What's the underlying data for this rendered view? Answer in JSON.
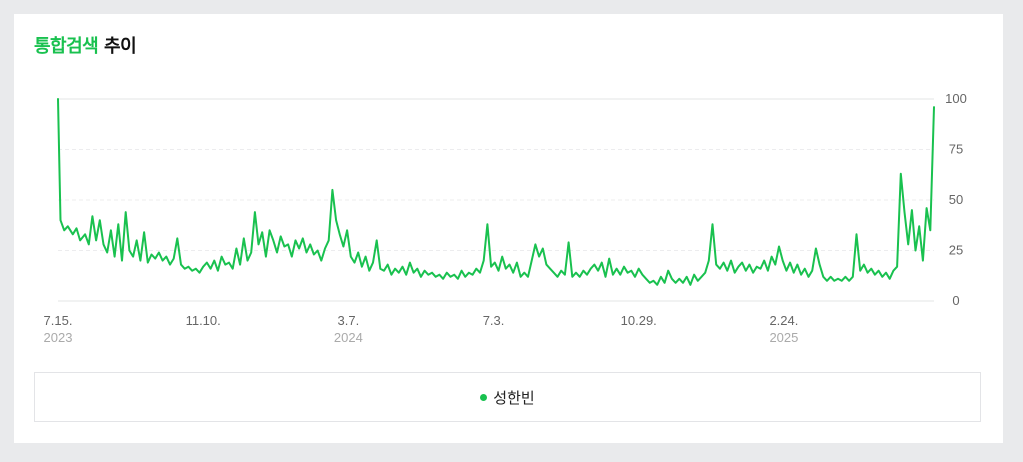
{
  "title": {
    "accent": "통합검색",
    "rest": "추이"
  },
  "legend": {
    "items": [
      {
        "label": "성한빈",
        "color": "#19c14f"
      }
    ]
  },
  "chart_data": {
    "type": "line",
    "x_labels": [
      {
        "date": "7.15.",
        "year": "2023",
        "index": 0
      },
      {
        "date": "11.10.",
        "year": "",
        "index": 118
      },
      {
        "date": "3.7.",
        "year": "2024",
        "index": 236
      },
      {
        "date": "7.3.",
        "year": "",
        "index": 354
      },
      {
        "date": "10.29.",
        "year": "",
        "index": 472
      },
      {
        "date": "2.24.",
        "year": "2025",
        "index": 590
      }
    ],
    "y_ticks": [
      0,
      25,
      50,
      75,
      100
    ],
    "ylim": [
      0,
      100
    ],
    "grid": true,
    "line_color": "#19c14f",
    "series": [
      {
        "name": "성한빈",
        "x_start": "2023-07-15",
        "x_step": "1 day",
        "anchors": [
          [
            0,
            100
          ],
          [
            2,
            40
          ],
          [
            5,
            35
          ],
          [
            8,
            37
          ],
          [
            12,
            33
          ],
          [
            15,
            36
          ],
          [
            18,
            30
          ],
          [
            22,
            33
          ],
          [
            25,
            28
          ],
          [
            28,
            42
          ],
          [
            31,
            30
          ],
          [
            34,
            40
          ],
          [
            37,
            28
          ],
          [
            40,
            24
          ],
          [
            43,
            35
          ],
          [
            46,
            22
          ],
          [
            49,
            38
          ],
          [
            52,
            20
          ],
          [
            55,
            44
          ],
          [
            58,
            25
          ],
          [
            61,
            22
          ],
          [
            64,
            30
          ],
          [
            67,
            20
          ],
          [
            70,
            34
          ],
          [
            73,
            19
          ],
          [
            76,
            23
          ],
          [
            79,
            21
          ],
          [
            82,
            24
          ],
          [
            85,
            20
          ],
          [
            88,
            22
          ],
          [
            91,
            18
          ],
          [
            94,
            21
          ],
          [
            97,
            31
          ],
          [
            100,
            18
          ],
          [
            103,
            16
          ],
          [
            106,
            17
          ],
          [
            109,
            15
          ],
          [
            112,
            16
          ],
          [
            115,
            14
          ],
          [
            118,
            17
          ],
          [
            121,
            19
          ],
          [
            124,
            16
          ],
          [
            127,
            20
          ],
          [
            130,
            15
          ],
          [
            133,
            22
          ],
          [
            136,
            18
          ],
          [
            139,
            19
          ],
          [
            142,
            16
          ],
          [
            145,
            26
          ],
          [
            148,
            18
          ],
          [
            151,
            31
          ],
          [
            154,
            20
          ],
          [
            157,
            24
          ],
          [
            160,
            44
          ],
          [
            163,
            28
          ],
          [
            166,
            34
          ],
          [
            169,
            22
          ],
          [
            172,
            35
          ],
          [
            175,
            30
          ],
          [
            178,
            24
          ],
          [
            181,
            32
          ],
          [
            184,
            27
          ],
          [
            187,
            28
          ],
          [
            190,
            22
          ],
          [
            193,
            30
          ],
          [
            196,
            26
          ],
          [
            199,
            31
          ],
          [
            202,
            24
          ],
          [
            205,
            28
          ],
          [
            208,
            23
          ],
          [
            211,
            25
          ],
          [
            214,
            20
          ],
          [
            217,
            26
          ],
          [
            220,
            30
          ],
          [
            223,
            55
          ],
          [
            226,
            40
          ],
          [
            229,
            33
          ],
          [
            232,
            27
          ],
          [
            235,
            35
          ],
          [
            238,
            22
          ],
          [
            241,
            19
          ],
          [
            244,
            24
          ],
          [
            247,
            17
          ],
          [
            250,
            22
          ],
          [
            253,
            15
          ],
          [
            256,
            19
          ],
          [
            259,
            30
          ],
          [
            262,
            16
          ],
          [
            265,
            15
          ],
          [
            268,
            18
          ],
          [
            271,
            13
          ],
          [
            274,
            16
          ],
          [
            277,
            14
          ],
          [
            280,
            17
          ],
          [
            283,
            13
          ],
          [
            286,
            19
          ],
          [
            289,
            14
          ],
          [
            292,
            16
          ],
          [
            295,
            12
          ],
          [
            298,
            15
          ],
          [
            301,
            13
          ],
          [
            304,
            14
          ],
          [
            307,
            12
          ],
          [
            310,
            13
          ],
          [
            313,
            11
          ],
          [
            316,
            14
          ],
          [
            319,
            12
          ],
          [
            322,
            13
          ],
          [
            325,
            11
          ],
          [
            328,
            15
          ],
          [
            331,
            12
          ],
          [
            334,
            14
          ],
          [
            337,
            13
          ],
          [
            340,
            16
          ],
          [
            343,
            14
          ],
          [
            346,
            20
          ],
          [
            349,
            38
          ],
          [
            352,
            17
          ],
          [
            355,
            19
          ],
          [
            358,
            15
          ],
          [
            361,
            22
          ],
          [
            364,
            16
          ],
          [
            367,
            18
          ],
          [
            370,
            14
          ],
          [
            373,
            19
          ],
          [
            376,
            12
          ],
          [
            379,
            14
          ],
          [
            382,
            12
          ],
          [
            385,
            20
          ],
          [
            388,
            28
          ],
          [
            391,
            22
          ],
          [
            394,
            26
          ],
          [
            397,
            18
          ],
          [
            400,
            16
          ],
          [
            403,
            14
          ],
          [
            406,
            12
          ],
          [
            409,
            15
          ],
          [
            412,
            13
          ],
          [
            415,
            29
          ],
          [
            418,
            12
          ],
          [
            421,
            14
          ],
          [
            424,
            12
          ],
          [
            427,
            15
          ],
          [
            430,
            13
          ],
          [
            433,
            16
          ],
          [
            436,
            18
          ],
          [
            439,
            15
          ],
          [
            442,
            19
          ],
          [
            445,
            12
          ],
          [
            448,
            21
          ],
          [
            451,
            13
          ],
          [
            454,
            16
          ],
          [
            457,
            13
          ],
          [
            460,
            17
          ],
          [
            463,
            14
          ],
          [
            466,
            15
          ],
          [
            469,
            12
          ],
          [
            472,
            16
          ],
          [
            475,
            13
          ],
          [
            478,
            11
          ],
          [
            481,
            9
          ],
          [
            484,
            10
          ],
          [
            487,
            8
          ],
          [
            490,
            12
          ],
          [
            493,
            9
          ],
          [
            496,
            15
          ],
          [
            499,
            11
          ],
          [
            502,
            9
          ],
          [
            505,
            11
          ],
          [
            508,
            9
          ],
          [
            511,
            12
          ],
          [
            514,
            8
          ],
          [
            517,
            13
          ],
          [
            520,
            10
          ],
          [
            523,
            12
          ],
          [
            526,
            14
          ],
          [
            529,
            20
          ],
          [
            532,
            38
          ],
          [
            535,
            18
          ],
          [
            538,
            16
          ],
          [
            541,
            19
          ],
          [
            544,
            15
          ],
          [
            547,
            20
          ],
          [
            550,
            14
          ],
          [
            553,
            17
          ],
          [
            556,
            19
          ],
          [
            559,
            15
          ],
          [
            562,
            18
          ],
          [
            565,
            14
          ],
          [
            568,
            17
          ],
          [
            571,
            16
          ],
          [
            574,
            20
          ],
          [
            577,
            15
          ],
          [
            580,
            22
          ],
          [
            583,
            18
          ],
          [
            586,
            27
          ],
          [
            589,
            20
          ],
          [
            592,
            15
          ],
          [
            595,
            19
          ],
          [
            598,
            14
          ],
          [
            601,
            18
          ],
          [
            604,
            13
          ],
          [
            607,
            16
          ],
          [
            610,
            12
          ],
          [
            613,
            15
          ],
          [
            616,
            26
          ],
          [
            619,
            18
          ],
          [
            622,
            12
          ],
          [
            625,
            10
          ],
          [
            628,
            12
          ],
          [
            631,
            10
          ],
          [
            634,
            11
          ],
          [
            637,
            10
          ],
          [
            640,
            12
          ],
          [
            643,
            10
          ],
          [
            646,
            12
          ],
          [
            649,
            33
          ],
          [
            652,
            15
          ],
          [
            655,
            18
          ],
          [
            658,
            14
          ],
          [
            661,
            16
          ],
          [
            664,
            13
          ],
          [
            667,
            15
          ],
          [
            670,
            12
          ],
          [
            673,
            14
          ],
          [
            676,
            11
          ],
          [
            679,
            15
          ],
          [
            682,
            17
          ],
          [
            685,
            63
          ],
          [
            688,
            44
          ],
          [
            691,
            28
          ],
          [
            694,
            45
          ],
          [
            697,
            25
          ],
          [
            700,
            37
          ],
          [
            703,
            20
          ],
          [
            706,
            46
          ],
          [
            709,
            35
          ],
          [
            712,
            96
          ]
        ]
      }
    ]
  }
}
